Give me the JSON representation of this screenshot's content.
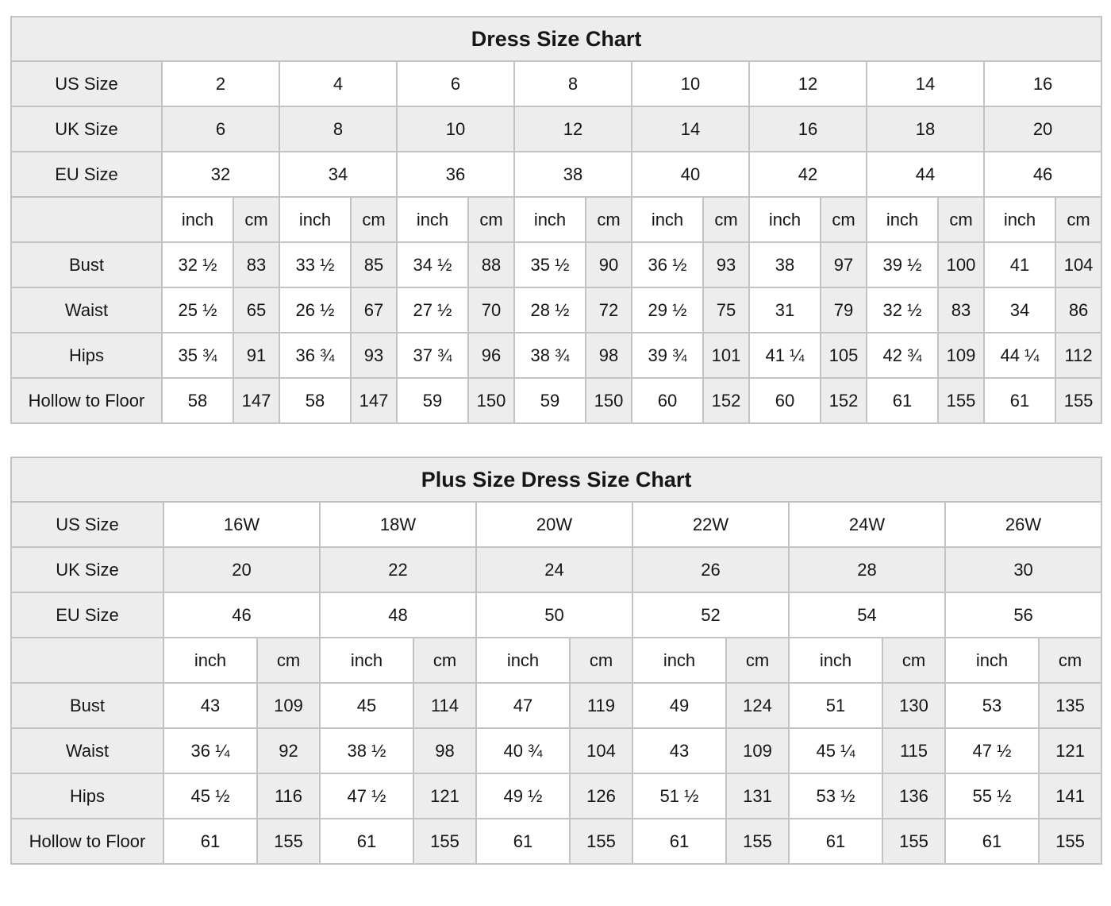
{
  "colors": {
    "shaded_cell_bg": "#ededed",
    "cell_border": "#c3c3c3",
    "text": "#161616",
    "plain_cell_bg": "#ffffff"
  },
  "chart_data": [
    {
      "type": "table",
      "title": "Dress Size Chart",
      "size_rows": [
        {
          "label": "US Size",
          "shaded": false,
          "values": [
            "2",
            "4",
            "6",
            "8",
            "10",
            "12",
            "14",
            "16"
          ]
        },
        {
          "label": "UK Size",
          "shaded": true,
          "values": [
            "6",
            "8",
            "10",
            "12",
            "14",
            "16",
            "18",
            "20"
          ]
        },
        {
          "label": "EU Size",
          "shaded": false,
          "values": [
            "32",
            "34",
            "36",
            "38",
            "40",
            "42",
            "44",
            "46"
          ]
        }
      ],
      "unit_cells": [
        "inch",
        "cm",
        "inch",
        "cm",
        "inch",
        "cm",
        "inch",
        "cm",
        "inch",
        "cm",
        "inch",
        "cm",
        "inch",
        "cm",
        "inch",
        "cm"
      ],
      "measure_rows": [
        {
          "label": "Bust",
          "values": [
            "32 ½",
            "83",
            "33 ½",
            "85",
            "34 ½",
            "88",
            "35 ½",
            "90",
            "36 ½",
            "93",
            "38",
            "97",
            "39 ½",
            "100",
            "41",
            "104"
          ]
        },
        {
          "label": "Waist",
          "values": [
            "25 ½",
            "65",
            "26 ½",
            "67",
            "27 ½",
            "70",
            "28 ½",
            "72",
            "29 ½",
            "75",
            "31",
            "79",
            "32 ½",
            "83",
            "34",
            "86"
          ]
        },
        {
          "label": "Hips",
          "values": [
            "35 ¾",
            "91",
            "36 ¾",
            "93",
            "37 ¾",
            "96",
            "38 ¾",
            "98",
            "39 ¾",
            "101",
            "41 ¼",
            "105",
            "42 ¾",
            "109",
            "44 ¼",
            "112"
          ]
        },
        {
          "label": "Hollow to Floor",
          "values": [
            "58",
            "147",
            "58",
            "147",
            "59",
            "150",
            "59",
            "150",
            "60",
            "152",
            "60",
            "152",
            "61",
            "155",
            "61",
            "155"
          ]
        }
      ]
    },
    {
      "type": "table",
      "title": "Plus Size Dress Size Chart",
      "size_rows": [
        {
          "label": "US Size",
          "shaded": false,
          "values": [
            "16W",
            "18W",
            "20W",
            "22W",
            "24W",
            "26W"
          ]
        },
        {
          "label": "UK Size",
          "shaded": true,
          "values": [
            "20",
            "22",
            "24",
            "26",
            "28",
            "30"
          ]
        },
        {
          "label": "EU Size",
          "shaded": false,
          "values": [
            "46",
            "48",
            "50",
            "52",
            "54",
            "56"
          ]
        }
      ],
      "unit_cells": [
        "inch",
        "cm",
        "inch",
        "cm",
        "inch",
        "cm",
        "inch",
        "cm",
        "inch",
        "cm",
        "inch",
        "cm"
      ],
      "measure_rows": [
        {
          "label": "Bust",
          "values": [
            "43",
            "109",
            "45",
            "114",
            "47",
            "119",
            "49",
            "124",
            "51",
            "130",
            "53",
            "135"
          ]
        },
        {
          "label": "Waist",
          "values": [
            "36 ¼",
            "92",
            "38 ½",
            "98",
            "40 ¾",
            "104",
            "43",
            "109",
            "45 ¼",
            "115",
            "47 ½",
            "121"
          ]
        },
        {
          "label": "Hips",
          "values": [
            "45 ½",
            "116",
            "47 ½",
            "121",
            "49 ½",
            "126",
            "51 ½",
            "131",
            "53 ½",
            "136",
            "55 ½",
            "141"
          ]
        },
        {
          "label": "Hollow to Floor",
          "values": [
            "61",
            "155",
            "61",
            "155",
            "61",
            "155",
            "61",
            "155",
            "61",
            "155",
            "61",
            "155"
          ]
        }
      ]
    }
  ]
}
